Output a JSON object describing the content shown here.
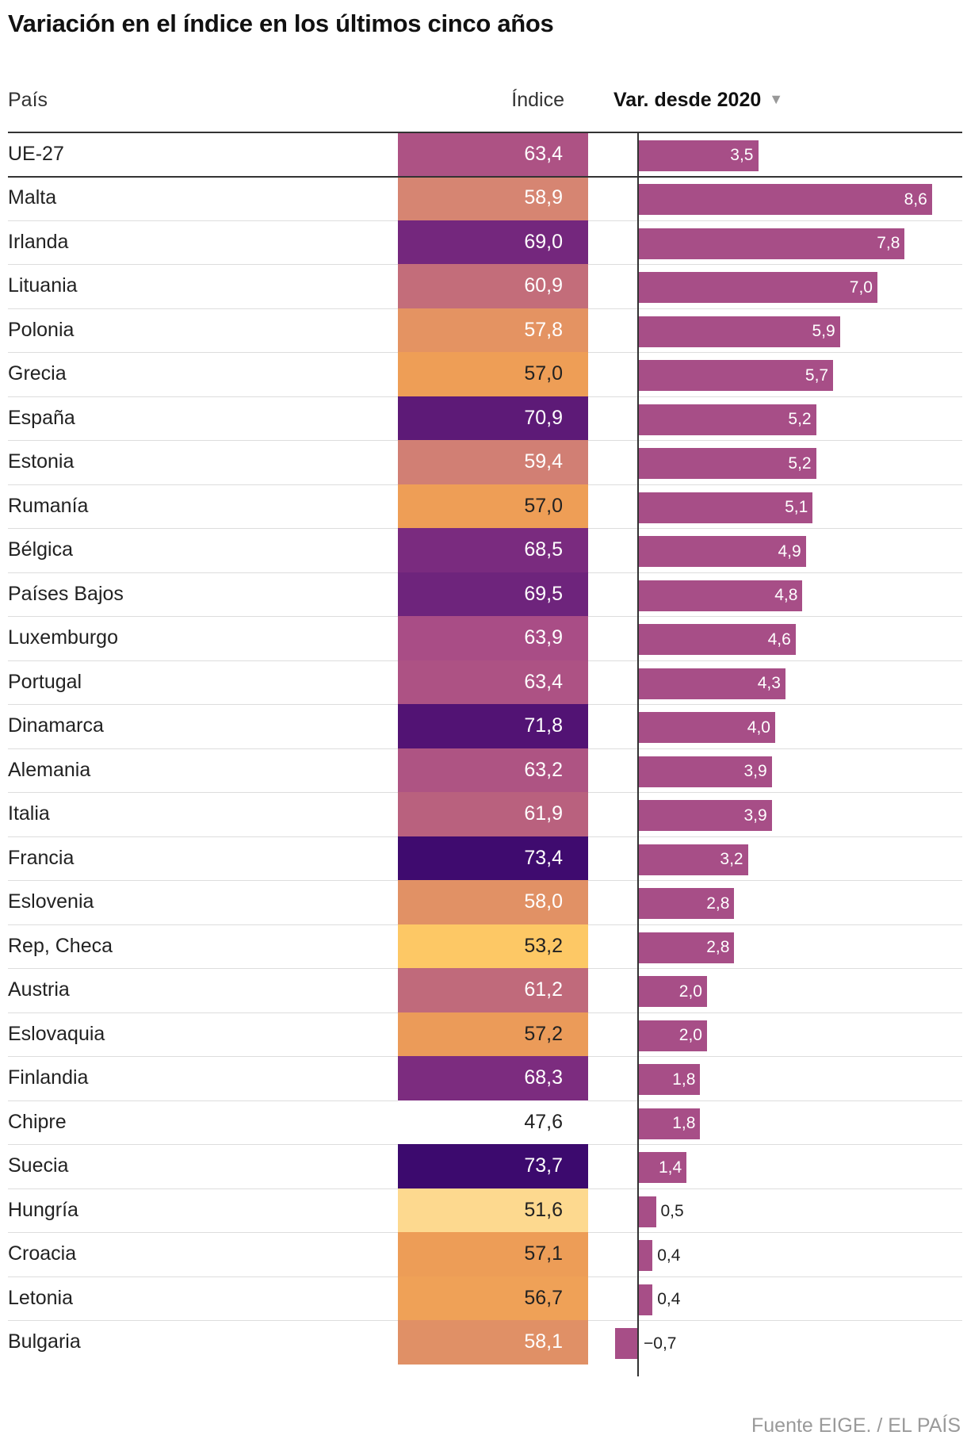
{
  "title": "Variación en el índice en los últimos cinco años",
  "headers": {
    "country": "País",
    "index": "Índice",
    "variation": "Var. desde 2020",
    "sort_icon": "triangle-down-icon"
  },
  "source": "Fuente EIGE. / EL PAÍS",
  "colors": {
    "bar": "#a74e87",
    "index_scale": [
      "#fdd98f",
      "#fdc865",
      "#ee9e56",
      "#d68572",
      "#b3587e",
      "#7a2b7f",
      "#3c0a6e"
    ]
  },
  "chart_data": {
    "type": "table",
    "title": "Variación en el índice en los últimos cinco años",
    "columns": [
      "País",
      "Índice",
      "Var. desde 2020"
    ],
    "sort": "Var. desde 2020 descending",
    "rows": [
      {
        "country": "UE-27",
        "index": 63.4,
        "index_label": "63,4",
        "var": 3.5,
        "var_label": "3,5"
      },
      {
        "country": "Malta",
        "index": 58.9,
        "index_label": "58,9",
        "var": 8.6,
        "var_label": "8,6"
      },
      {
        "country": "Irlanda",
        "index": 69.0,
        "index_label": "69,0",
        "var": 7.8,
        "var_label": "7,8"
      },
      {
        "country": "Lituania",
        "index": 60.9,
        "index_label": "60,9",
        "var": 7.0,
        "var_label": "7,0"
      },
      {
        "country": "Polonia",
        "index": 57.8,
        "index_label": "57,8",
        "var": 5.9,
        "var_label": "5,9"
      },
      {
        "country": "Grecia",
        "index": 57.0,
        "index_label": "57,0",
        "var": 5.7,
        "var_label": "5,7"
      },
      {
        "country": "España",
        "index": 70.9,
        "index_label": "70,9",
        "var": 5.2,
        "var_label": "5,2"
      },
      {
        "country": "Estonia",
        "index": 59.4,
        "index_label": "59,4",
        "var": 5.2,
        "var_label": "5,2"
      },
      {
        "country": "Rumanía",
        "index": 57.0,
        "index_label": "57,0",
        "var": 5.1,
        "var_label": "5,1"
      },
      {
        "country": "Bélgica",
        "index": 68.5,
        "index_label": "68,5",
        "var": 4.9,
        "var_label": "4,9"
      },
      {
        "country": "Países Bajos",
        "index": 69.5,
        "index_label": "69,5",
        "var": 4.8,
        "var_label": "4,8"
      },
      {
        "country": "Luxemburgo",
        "index": 63.9,
        "index_label": "63,9",
        "var": 4.6,
        "var_label": "4,6"
      },
      {
        "country": "Portugal",
        "index": 63.4,
        "index_label": "63,4",
        "var": 4.3,
        "var_label": "4,3"
      },
      {
        "country": "Dinamarca",
        "index": 71.8,
        "index_label": "71,8",
        "var": 4.0,
        "var_label": "4,0"
      },
      {
        "country": "Alemania",
        "index": 63.2,
        "index_label": "63,2",
        "var": 3.9,
        "var_label": "3,9"
      },
      {
        "country": "Italia",
        "index": 61.9,
        "index_label": "61,9",
        "var": 3.9,
        "var_label": "3,9"
      },
      {
        "country": "Francia",
        "index": 73.4,
        "index_label": "73,4",
        "var": 3.2,
        "var_label": "3,2"
      },
      {
        "country": "Eslovenia",
        "index": 58.0,
        "index_label": "58,0",
        "var": 2.8,
        "var_label": "2,8"
      },
      {
        "country": "Rep, Checa",
        "index": 53.2,
        "index_label": "53,2",
        "var": 2.8,
        "var_label": "2,8"
      },
      {
        "country": "Austria",
        "index": 61.2,
        "index_label": "61,2",
        "var": 2.0,
        "var_label": "2,0"
      },
      {
        "country": "Eslovaquia",
        "index": 57.2,
        "index_label": "57,2",
        "var": 2.0,
        "var_label": "2,0"
      },
      {
        "country": "Finlandia",
        "index": 68.3,
        "index_label": "68,3",
        "var": 1.8,
        "var_label": "1,8"
      },
      {
        "country": "Chipre",
        "index": 47.6,
        "index_label": "47,6",
        "var": 1.8,
        "var_label": "1,8"
      },
      {
        "country": "Suecia",
        "index": 73.7,
        "index_label": "73,7",
        "var": 1.4,
        "var_label": "1,4"
      },
      {
        "country": "Hungría",
        "index": 51.6,
        "index_label": "51,6",
        "var": 0.5,
        "var_label": "0,5"
      },
      {
        "country": "Croacia",
        "index": 57.1,
        "index_label": "57,1",
        "var": 0.4,
        "var_label": "0,4"
      },
      {
        "country": "Letonia",
        "index": 56.7,
        "index_label": "56,7",
        "var": 0.4,
        "var_label": "0,4"
      },
      {
        "country": "Bulgaria",
        "index": 58.1,
        "index_label": "58,1",
        "var": -0.7,
        "var_label": "−0,7"
      }
    ]
  }
}
